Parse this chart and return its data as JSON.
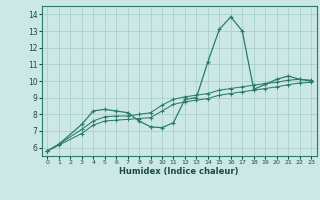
{
  "bg_color": "#cce8e5",
  "line_color": "#2a7a70",
  "grid_color": "#aacfcc",
  "xlabel": "Humidex (Indice chaleur)",
  "xlim": [
    -0.5,
    23.5
  ],
  "ylim": [
    5.5,
    14.5
  ],
  "yticks": [
    6,
    7,
    8,
    9,
    10,
    11,
    12,
    13,
    14
  ],
  "xticks": [
    0,
    1,
    2,
    3,
    4,
    5,
    6,
    7,
    8,
    9,
    10,
    11,
    12,
    13,
    14,
    15,
    16,
    17,
    18,
    19,
    20,
    21,
    22,
    23
  ],
  "line1_x": [
    0,
    1,
    3,
    4,
    5,
    6,
    7,
    8,
    9,
    10,
    11,
    12,
    13,
    14,
    15,
    16,
    17,
    18,
    19,
    20,
    21,
    22,
    23
  ],
  "line1_y": [
    5.8,
    6.2,
    7.4,
    8.2,
    8.3,
    8.2,
    8.1,
    7.6,
    7.25,
    7.2,
    7.5,
    8.9,
    9.0,
    11.15,
    13.1,
    13.85,
    13.0,
    9.5,
    9.8,
    10.1,
    10.3,
    10.1,
    10.0
  ],
  "line2_x": [
    0,
    1,
    3,
    4,
    5,
    6,
    7,
    8,
    9,
    10,
    11,
    12,
    13,
    14,
    15,
    16,
    17,
    18,
    19,
    20,
    21,
    22,
    23
  ],
  "line2_y": [
    5.8,
    6.2,
    7.1,
    7.6,
    7.85,
    7.9,
    7.9,
    8.0,
    8.1,
    8.55,
    8.9,
    9.05,
    9.15,
    9.25,
    9.45,
    9.55,
    9.65,
    9.75,
    9.85,
    9.92,
    10.05,
    10.1,
    10.05
  ],
  "line3_x": [
    0,
    1,
    3,
    4,
    5,
    6,
    7,
    8,
    9,
    10,
    11,
    12,
    13,
    14,
    15,
    16,
    17,
    18,
    19,
    20,
    21,
    22,
    23
  ],
  "line3_y": [
    5.8,
    6.15,
    6.85,
    7.35,
    7.6,
    7.65,
    7.7,
    7.75,
    7.8,
    8.2,
    8.6,
    8.75,
    8.85,
    8.95,
    9.15,
    9.25,
    9.35,
    9.45,
    9.55,
    9.65,
    9.78,
    9.88,
    9.92
  ]
}
